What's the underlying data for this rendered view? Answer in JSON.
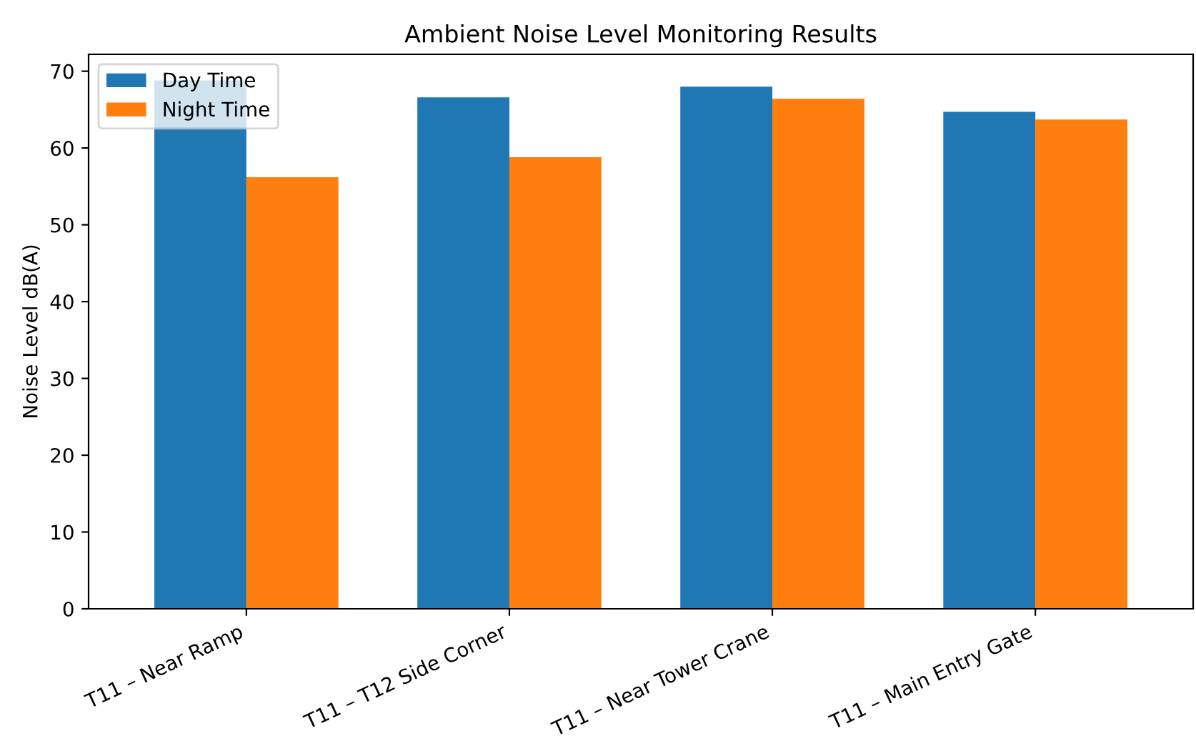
{
  "chart_data": {
    "type": "bar",
    "title": "Ambient Noise Level Monitoring Results",
    "ylabel": "Noise Level dB(A)",
    "categories": [
      "T11 – Near Ramp",
      "T11 – T12 Side Corner",
      "T11 – Near Tower Crane",
      "T11 – Main Entry Gate"
    ],
    "series": [
      {
        "name": "Day Time",
        "color": "#1f77b4",
        "values": [
          68.8,
          66.6,
          68.0,
          64.7
        ]
      },
      {
        "name": "Night Time",
        "color": "#ff7f0e",
        "values": [
          56.2,
          58.8,
          66.4,
          63.7
        ]
      }
    ],
    "ylim": [
      0,
      72.2
    ],
    "yticks": [
      0,
      10,
      20,
      30,
      40,
      50,
      60,
      70
    ],
    "legend": "top left",
    "grid": false
  }
}
